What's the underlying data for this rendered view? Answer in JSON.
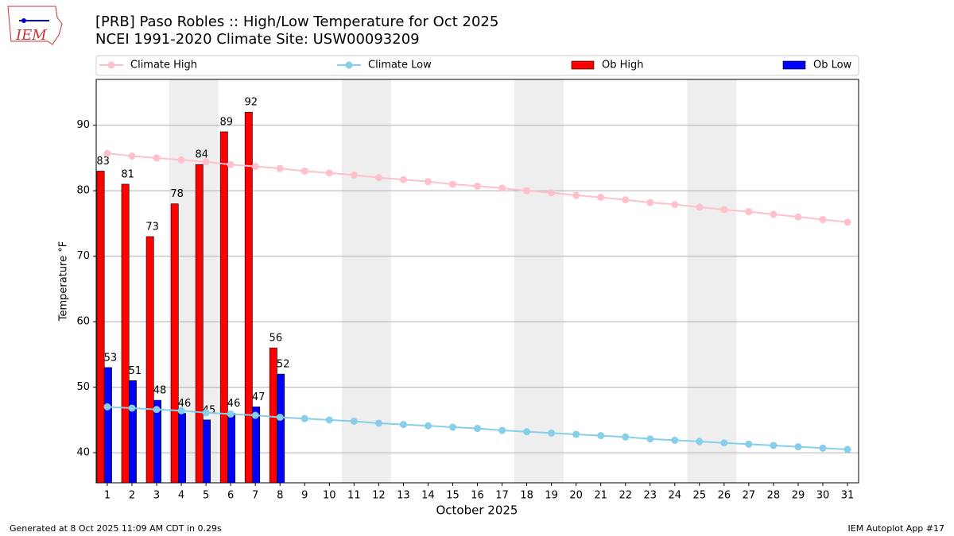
{
  "logo": "IEM",
  "chart_data": {
    "type": "bar",
    "title": [
      "[PRB] Paso Robles :: High/Low Temperature for Oct 2025",
      "NCEI 1991-2020 Climate Site: USW00093209"
    ],
    "x_label": "October 2025",
    "y_label": "Temperature °F",
    "x": [
      1,
      2,
      3,
      4,
      5,
      6,
      7,
      8,
      9,
      10,
      11,
      12,
      13,
      14,
      15,
      16,
      17,
      18,
      19,
      20,
      21,
      22,
      23,
      24,
      25,
      26,
      27,
      28,
      29,
      30,
      31
    ],
    "xlim": [
      0.55,
      31.45
    ],
    "xticks": [
      1,
      2,
      3,
      4,
      5,
      6,
      7,
      8,
      9,
      10,
      11,
      12,
      13,
      14,
      15,
      16,
      17,
      18,
      19,
      20,
      21,
      22,
      23,
      24,
      25,
      26,
      27,
      28,
      29,
      30,
      31
    ],
    "ylim": [
      35.4,
      97.0
    ],
    "yticks": [
      40,
      50,
      60,
      70,
      80,
      90
    ],
    "grid": true,
    "highlight_days": [
      4,
      5,
      11,
      12,
      18,
      19,
      25,
      26
    ],
    "series": [
      {
        "name": "Climate High",
        "type": "line",
        "color": "#ffc0cb",
        "values": [
          85.7,
          85.3,
          85.0,
          84.7,
          84.4,
          84.0,
          83.7,
          83.4,
          83.0,
          82.7,
          82.4,
          82.0,
          81.7,
          81.4,
          81.0,
          80.7,
          80.4,
          80.0,
          79.7,
          79.3,
          79.0,
          78.6,
          78.2,
          77.9,
          77.5,
          77.1,
          76.8,
          76.4,
          76.0,
          75.6,
          75.2
        ]
      },
      {
        "name": "Climate Low",
        "type": "line",
        "color": "#87ceeb",
        "values": [
          47.0,
          46.8,
          46.6,
          46.4,
          46.1,
          45.9,
          45.7,
          45.4,
          45.2,
          45.0,
          44.8,
          44.5,
          44.3,
          44.1,
          43.9,
          43.7,
          43.4,
          43.2,
          43.0,
          42.8,
          42.6,
          42.4,
          42.1,
          41.9,
          41.7,
          41.5,
          41.3,
          41.1,
          40.9,
          40.7,
          40.5
        ]
      },
      {
        "name": "Ob High",
        "type": "bar",
        "color": "#ff0000",
        "values": [
          83,
          81,
          73,
          78,
          84,
          89,
          92,
          56,
          null,
          null,
          null,
          null,
          null,
          null,
          null,
          null,
          null,
          null,
          null,
          null,
          null,
          null,
          null,
          null,
          null,
          null,
          null,
          null,
          null,
          null,
          null
        ]
      },
      {
        "name": "Ob Low",
        "type": "bar",
        "color": "#0000ff",
        "values": [
          53,
          51,
          48,
          46,
          45,
          46,
          47,
          52,
          null,
          null,
          null,
          null,
          null,
          null,
          null,
          null,
          null,
          null,
          null,
          null,
          null,
          null,
          null,
          null,
          null,
          null,
          null,
          null,
          null,
          null,
          null
        ]
      }
    ],
    "footer_left": "Generated at 8 Oct 2025 11:09 AM CDT in 0.29s",
    "footer_right": "IEM Autoplot App #17"
  }
}
